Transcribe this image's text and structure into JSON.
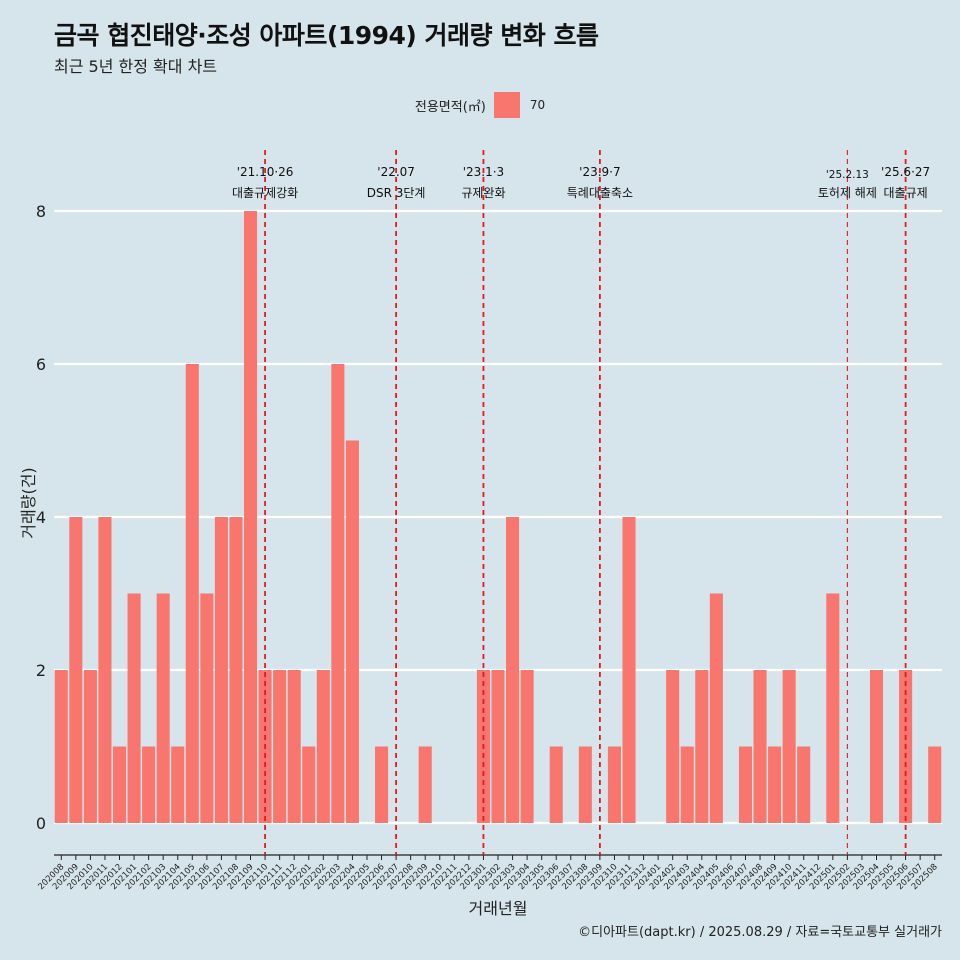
{
  "title": "금곡 협진태양·조성 아파트(1994) 거래량 변화 흐름",
  "subtitle": "최근 5년 한정 확대 차트",
  "caption": "©디아파트(dapt.kr) / 2025.08.29 / 자료=국토교통부 실거래가",
  "colors": {
    "background": "#d6e4eb",
    "bar": "#f8766d",
    "grid": "#ffffff",
    "event_line": "#e41a1c"
  },
  "chart_data": {
    "type": "bar",
    "xlabel": "거래년월",
    "ylabel": "거래량(건)",
    "ylim": [
      0,
      8.5
    ],
    "y_ticks": [
      0,
      2,
      4,
      6,
      8
    ],
    "legend": {
      "title": "전용면적(㎡)",
      "position": "top",
      "entries": [
        "70"
      ]
    },
    "categories": [
      "202008",
      "202009",
      "202010",
      "202011",
      "202012",
      "202101",
      "202102",
      "202103",
      "202104",
      "202105",
      "202106",
      "202107",
      "202108",
      "202109",
      "202110",
      "202111",
      "202112",
      "202201",
      "202202",
      "202203",
      "202204",
      "202205",
      "202206",
      "202207",
      "202208",
      "202209",
      "202210",
      "202211",
      "202212",
      "202301",
      "202302",
      "202303",
      "202304",
      "202305",
      "202306",
      "202307",
      "202308",
      "202309",
      "202310",
      "202311",
      "202312",
      "202401",
      "202402",
      "202403",
      "202404",
      "202405",
      "202406",
      "202407",
      "202408",
      "202409",
      "202410",
      "202411",
      "202412",
      "202501",
      "202502",
      "202503",
      "202504",
      "202505",
      "202506",
      "202507",
      "202508"
    ],
    "series": [
      {
        "name": "70",
        "values": [
          2,
          4,
          2,
          4,
          1,
          3,
          1,
          3,
          1,
          6,
          3,
          4,
          4,
          8,
          2,
          2,
          2,
          1,
          2,
          6,
          5,
          0,
          1,
          0,
          0,
          1,
          0,
          0,
          0,
          2,
          2,
          4,
          2,
          0,
          1,
          0,
          1,
          0,
          1,
          4,
          0,
          0,
          2,
          1,
          2,
          3,
          0,
          1,
          2,
          1,
          2,
          1,
          0,
          3,
          0,
          0,
          2,
          0,
          2,
          0,
          1
        ]
      }
    ],
    "events": [
      {
        "at": "202110",
        "date": "'21.10·26",
        "label": "대출규제강화",
        "style": "bold"
      },
      {
        "at": "202207",
        "date": "'22.07",
        "label": "DSR 3단계",
        "style": "bold"
      },
      {
        "at": "202301",
        "date": "'23.1·3",
        "label": "규제완화",
        "style": "bold"
      },
      {
        "at": "202309",
        "date": "'23.9·7",
        "label": "특례대출축소",
        "style": "bold"
      },
      {
        "at": "202502",
        "date": "'25.2.13",
        "label": "토허제 해제",
        "style": "thin"
      },
      {
        "at": "202506",
        "date": "'25.6·27",
        "label": "대출규제",
        "style": "bold"
      }
    ]
  }
}
